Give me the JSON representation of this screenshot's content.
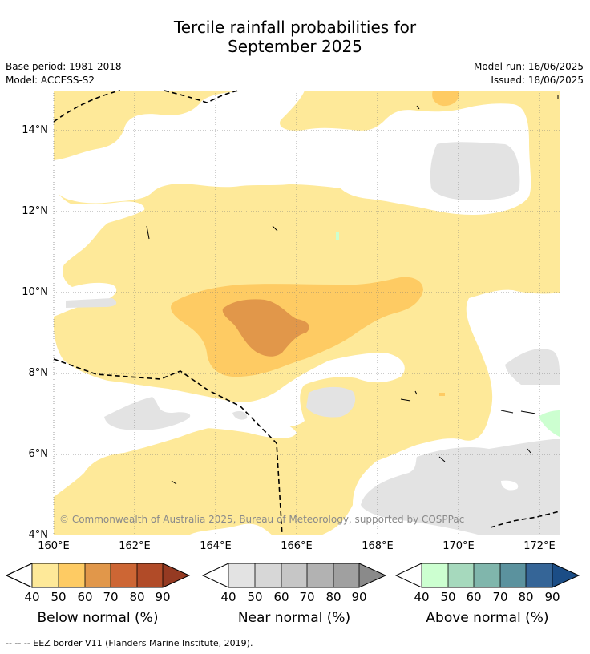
{
  "title": {
    "line1": "Tercile rainfall probabilities for",
    "line2": "September 2025"
  },
  "meta": {
    "base_period": "Base period: 1981-2018",
    "model": "Model: ACCESS-S2",
    "model_run": "Model run: 16/06/2025",
    "issued": "Issued: 18/06/2025"
  },
  "map": {
    "lat_labels": [
      "14°N",
      "12°N",
      "10°N",
      "8°N",
      "6°N",
      "4°N"
    ],
    "lon_labels": [
      "160°E",
      "162°E",
      "164°E",
      "166°E",
      "168°E",
      "170°E",
      "172°E"
    ],
    "lat_range": [
      4,
      15
    ],
    "lon_range": [
      160,
      172.5
    ],
    "copyright": "© Commonwealth of Australia 2025, Bureau of Meteorology, supported by COSPPac"
  },
  "colorbars": [
    {
      "label": "Below normal (%)",
      "ticks": [
        "40",
        "50",
        "60",
        "70",
        "80",
        "90"
      ],
      "colors": [
        "#fee999",
        "#fecb63",
        "#e1974a",
        "#cd6634",
        "#b14b28",
        "#953a22"
      ]
    },
    {
      "label": "Near normal (%)",
      "ticks": [
        "40",
        "50",
        "60",
        "70",
        "80",
        "90"
      ],
      "colors": [
        "#e3e3e3",
        "#d7d7d7",
        "#c6c6c6",
        "#b2b2b2",
        "#a0a0a0",
        "#8a8a8a"
      ]
    },
    {
      "label": "Above normal (%)",
      "ticks": [
        "40",
        "50",
        "60",
        "70",
        "80",
        "90"
      ],
      "colors": [
        "#ccffd0",
        "#a6d9bd",
        "#80b6ac",
        "#5b929e",
        "#356597",
        "#1b4d86"
      ]
    }
  ],
  "footer": "--  --  -- EEZ border V11 (Flanders Marine Institute, 2019)."
}
